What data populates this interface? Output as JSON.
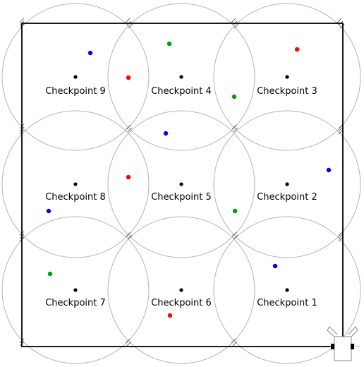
{
  "checkpoints": [
    {
      "label": "Checkpoint 9"
    },
    {
      "label": "Checkpoint 4"
    },
    {
      "label": "Checkpoint 3"
    },
    {
      "label": "Checkpoint 8"
    },
    {
      "label": "Checkpoint 5"
    },
    {
      "label": "Checkpoint 2"
    },
    {
      "label": "Checkpoint 7"
    },
    {
      "label": "Checkpoint 6"
    },
    {
      "label": "Checkpoint 1"
    }
  ],
  "colors": {
    "red": "#ff0000",
    "green": "#00a000",
    "blue": "#0000ff",
    "checkpoint": "#000000",
    "circle": "#b4b4b4",
    "arena": "#000000"
  }
}
